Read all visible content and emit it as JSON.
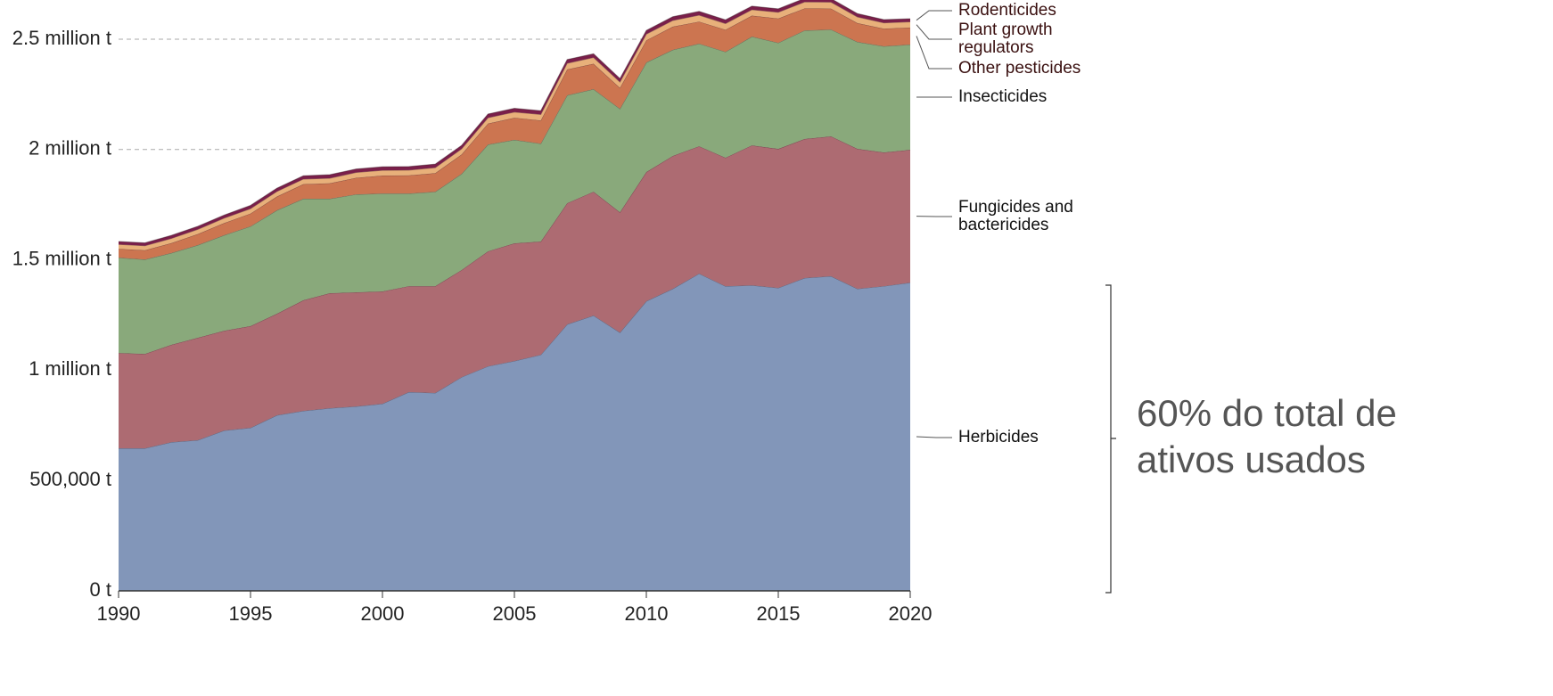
{
  "chart_data": {
    "type": "stacked-area",
    "x": [
      1990,
      1991,
      1992,
      1993,
      1994,
      1995,
      1996,
      1997,
      1998,
      1999,
      2000,
      2001,
      2002,
      2003,
      2004,
      2005,
      2006,
      2007,
      2008,
      2009,
      2010,
      2011,
      2012,
      2013,
      2014,
      2015,
      2016,
      2017,
      2018,
      2019,
      2020
    ],
    "series": [
      {
        "name": "Herbicides",
        "color": "#8296b9",
        "values": [
          646000,
          646000,
          674000,
          683000,
          727000,
          739000,
          796000,
          816000,
          828000,
          836000,
          848000,
          901000,
          897000,
          969000,
          1018000,
          1042000,
          1070000,
          1208000,
          1248000,
          1171000,
          1313000,
          1369000,
          1438000,
          1381000,
          1385000,
          1373000,
          1418000,
          1426000,
          1369000,
          1381000,
          1397000
        ]
      },
      {
        "name": "Fungicides and bactericides",
        "color": "#ad6b72",
        "values": [
          432000,
          428000,
          441000,
          464000,
          452000,
          461000,
          460000,
          501000,
          521000,
          517000,
          509000,
          480000,
          484000,
          485000,
          521000,
          533000,
          513000,
          549000,
          561000,
          545000,
          585000,
          602000,
          577000,
          582000,
          634000,
          630000,
          630000,
          634000,
          634000,
          606000,
          602000
        ]
      },
      {
        "name": "Insecticides",
        "color": "#89a97b",
        "values": [
          432000,
          428000,
          416000,
          420000,
          433000,
          452000,
          469000,
          460000,
          428000,
          444000,
          444000,
          420000,
          428000,
          436000,
          484000,
          469000,
          444000,
          489000,
          465000,
          469000,
          497000,
          481000,
          465000,
          480000,
          493000,
          481000,
          492000,
          484000,
          485000,
          481000,
          477000
        ]
      },
      {
        "name": "Other pesticides",
        "color": "#cc7550",
        "values": [
          40000,
          42000,
          45000,
          50000,
          55000,
          58000,
          62000,
          66000,
          70000,
          75000,
          81000,
          82000,
          84000,
          88000,
          95000,
          100000,
          105000,
          117000,
          115000,
          95000,
          100000,
          105000,
          100000,
          100000,
          95000,
          110000,
          100000,
          95000,
          85000,
          80000,
          77000
        ]
      },
      {
        "name": "Plant growth regulators",
        "color": "#e8b07a",
        "values": [
          20000,
          20000,
          21000,
          21000,
          22000,
          22000,
          23000,
          23000,
          23000,
          24000,
          24000,
          24000,
          25000,
          25000,
          26000,
          26000,
          27000,
          28000,
          28000,
          26000,
          28000,
          28000,
          29000,
          28000,
          27000,
          28000,
          29000,
          29000,
          28000,
          26000,
          26000
        ]
      },
      {
        "name": "Rodenticides",
        "color": "#7a1f4a",
        "values": [
          13000,
          13000,
          14000,
          14000,
          14000,
          15000,
          15000,
          15000,
          16000,
          16000,
          16000,
          16000,
          16000,
          16000,
          17000,
          17000,
          17000,
          17000,
          17000,
          16000,
          17000,
          17000,
          17000,
          17000,
          16000,
          16000,
          16000,
          16000,
          15000,
          15000,
          14000
        ]
      }
    ],
    "ylim": [
      0,
      2650000
    ],
    "yticks": [
      {
        "value": 0,
        "label": "0 t"
      },
      {
        "value": 500000,
        "label": "500,000 t"
      },
      {
        "value": 1000000,
        "label": "1 million t"
      },
      {
        "value": 1500000,
        "label": "1.5 million t"
      },
      {
        "value": 2000000,
        "label": "2 million t"
      },
      {
        "value": 2500000,
        "label": "2.5 million t"
      }
    ],
    "xlim": [
      1990,
      2020
    ],
    "xticks": [
      1990,
      1995,
      2000,
      2005,
      2010,
      2015,
      2020
    ],
    "grid": true,
    "annotation": "60% do total de ativos usados"
  }
}
